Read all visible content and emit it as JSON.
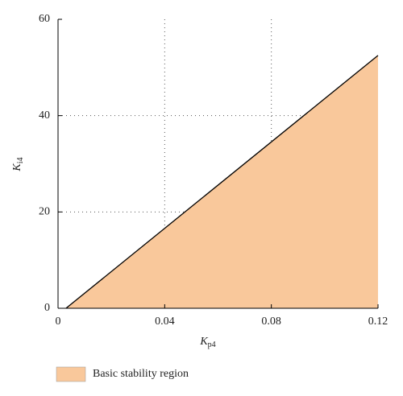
{
  "chart_data": {
    "type": "area",
    "xlabel": {
      "symbol": "K",
      "subscript": "p4"
    },
    "ylabel": {
      "symbol": "K",
      "subscript": "i4"
    },
    "series": [
      {
        "name": "Basic stability region",
        "color": "#f9c89b",
        "line_color": "#000000",
        "x": [
          0.003,
          0.12
        ],
        "values": [
          0,
          52.5
        ]
      }
    ],
    "xlim": [
      0,
      0.12
    ],
    "xticks": [
      0,
      0.04,
      0.08,
      0.12
    ],
    "ylim": [
      0,
      60
    ],
    "yticks": [
      0,
      20,
      40,
      60
    ],
    "grid": true,
    "legend": "bottom-left"
  }
}
